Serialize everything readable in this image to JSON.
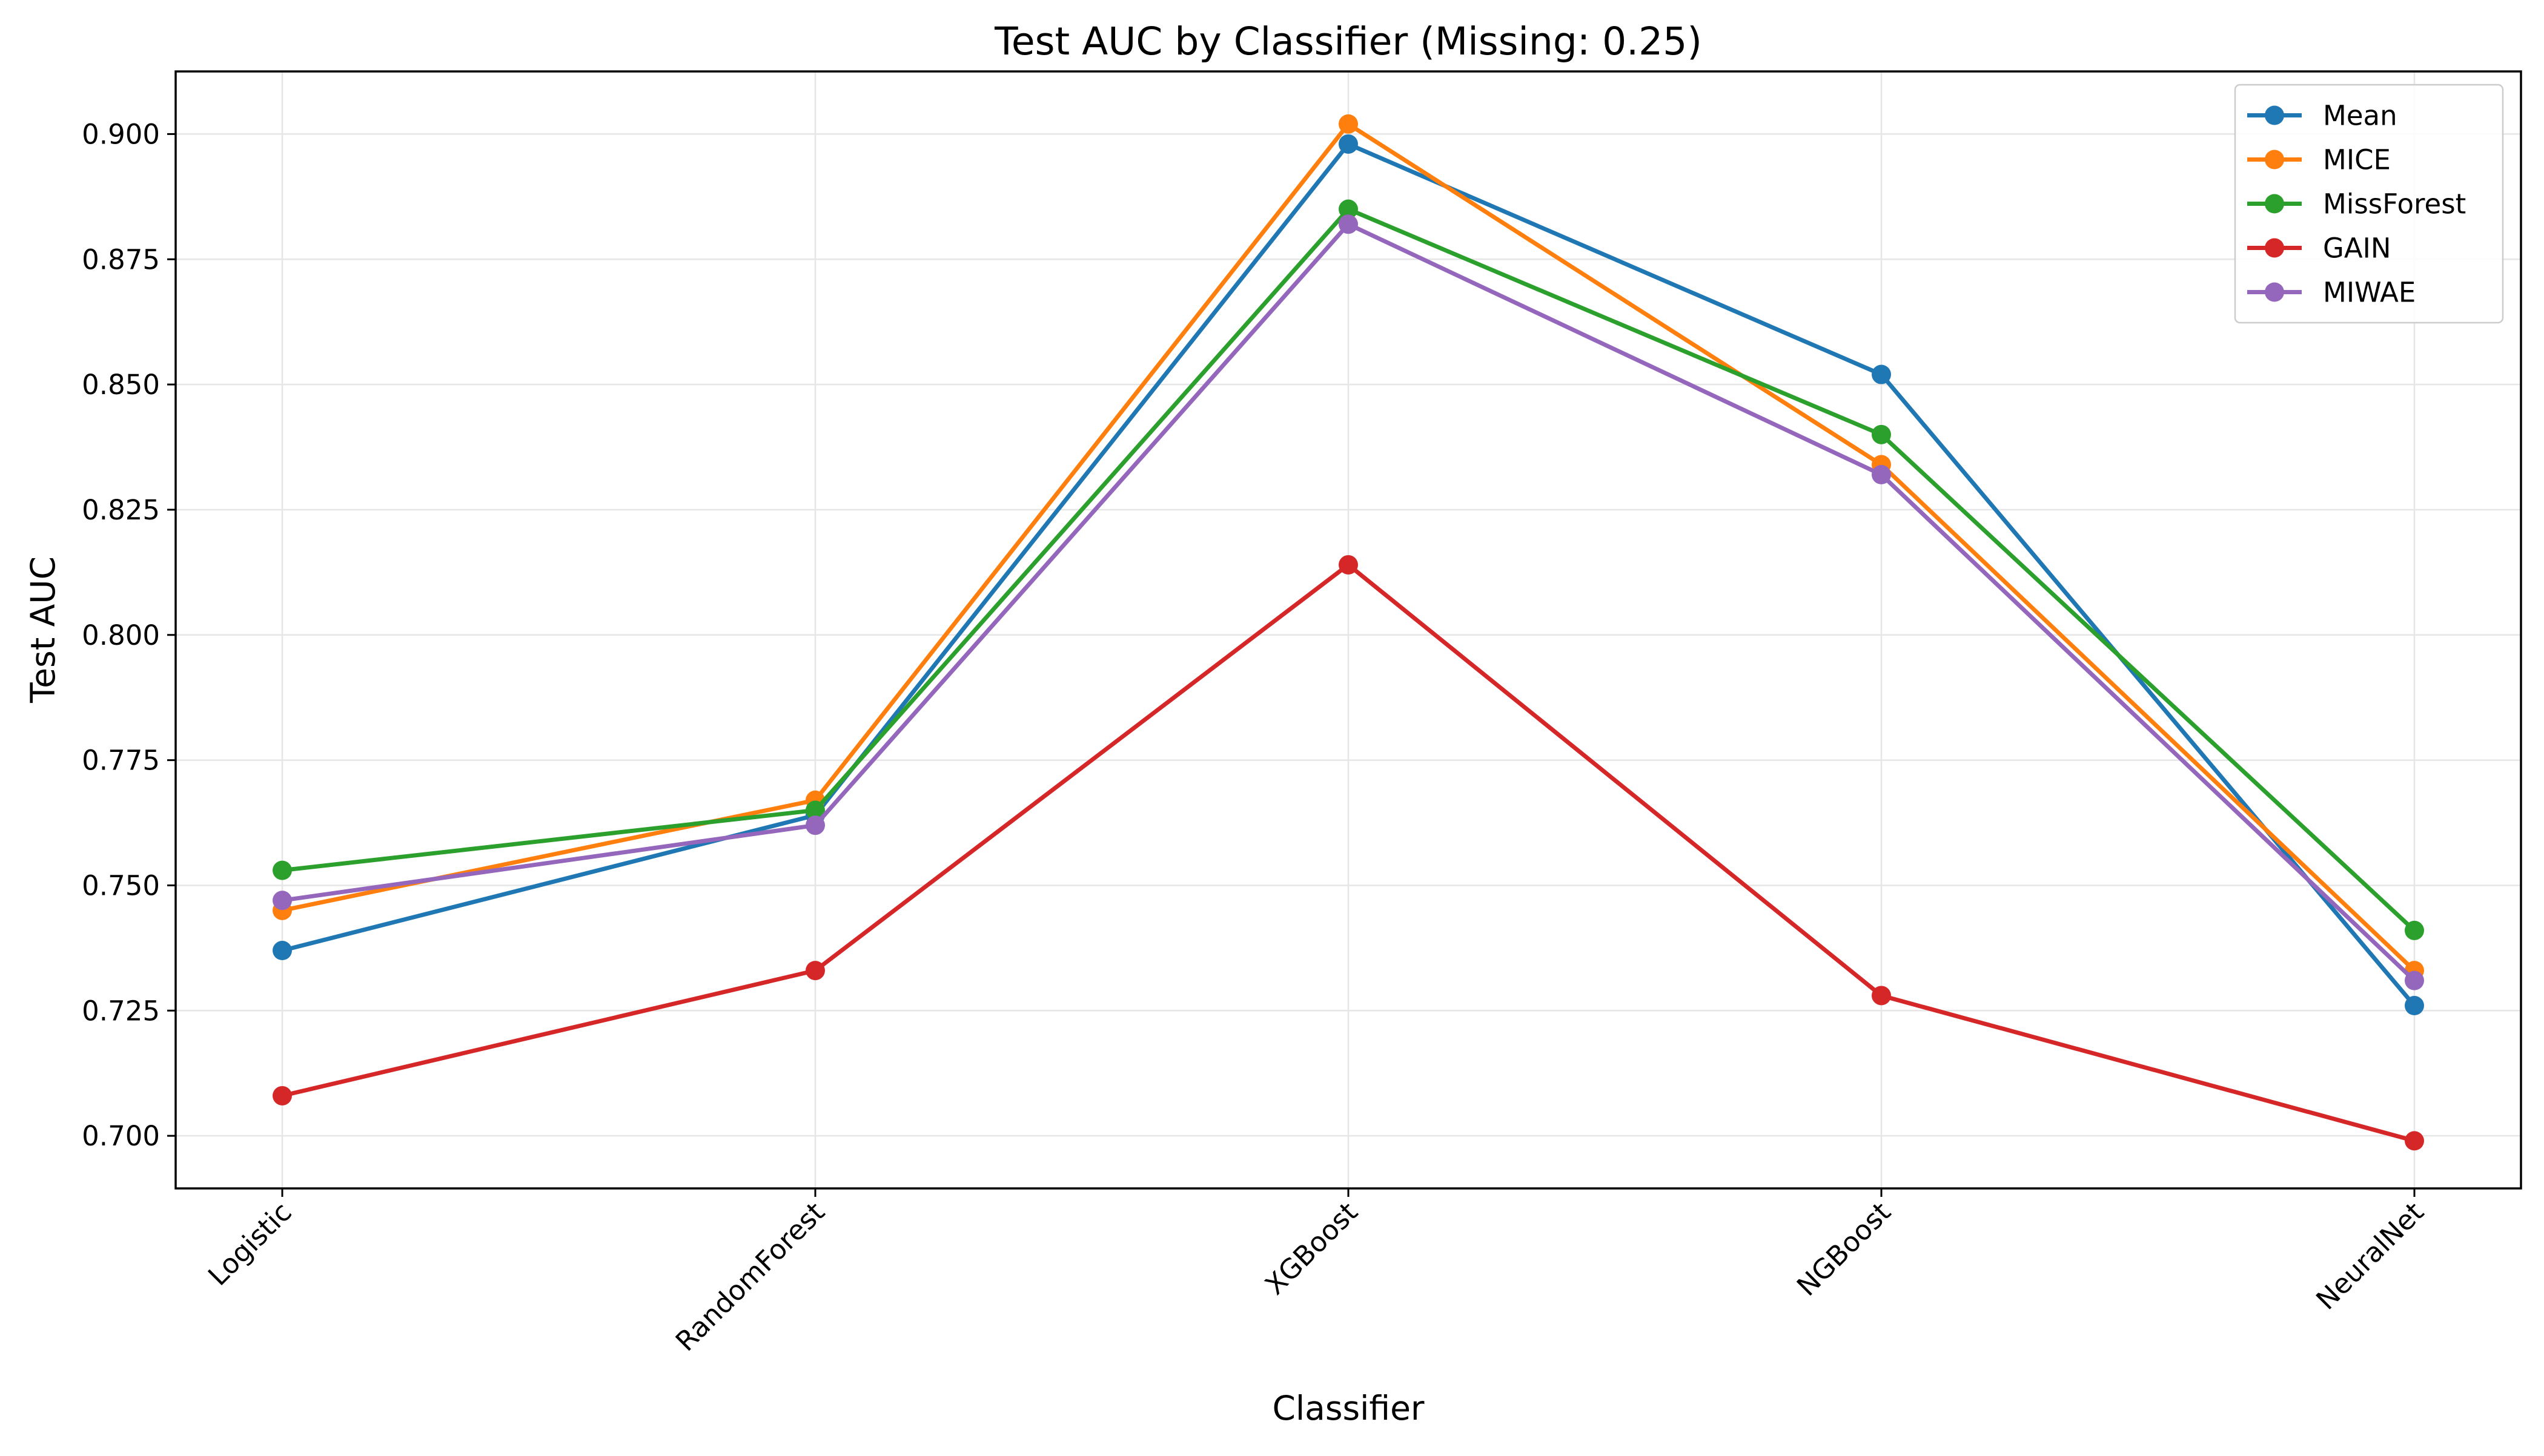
{
  "chart_data": {
    "type": "line",
    "title": "Test AUC by Classifier (Missing: 0.25)",
    "xlabel": "Classifier",
    "ylabel": "Test AUC",
    "categories": [
      "Logistic",
      "RandomForest",
      "XGBoost",
      "NGBoost",
      "NeuralNet"
    ],
    "ylim": [
      0.6895,
      0.9125
    ],
    "yticks": [
      "0.700",
      "0.725",
      "0.750",
      "0.775",
      "0.800",
      "0.825",
      "0.850",
      "0.875",
      "0.900"
    ],
    "grid": true,
    "legend_position": "top-right",
    "series": [
      {
        "name": "Mean",
        "color": "#1f77b4",
        "values": [
          0.737,
          0.764,
          0.898,
          0.852,
          0.726
        ]
      },
      {
        "name": "MICE",
        "color": "#ff7f0e",
        "values": [
          0.745,
          0.767,
          0.902,
          0.834,
          0.733
        ]
      },
      {
        "name": "MissForest",
        "color": "#2ca02c",
        "values": [
          0.753,
          0.765,
          0.885,
          0.84,
          0.741
        ]
      },
      {
        "name": "GAIN",
        "color": "#d62728",
        "values": [
          0.708,
          0.733,
          0.814,
          0.728,
          0.699
        ]
      },
      {
        "name": "MIWAE",
        "color": "#9467bd",
        "values": [
          0.747,
          0.762,
          0.882,
          0.832,
          0.731
        ]
      }
    ]
  }
}
